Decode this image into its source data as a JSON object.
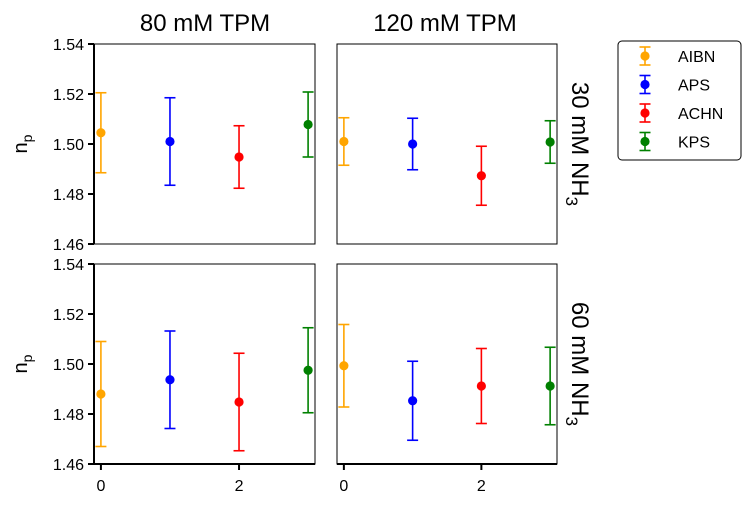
{
  "chart_data": {
    "type": "scatter",
    "grid": false,
    "legend_placement": "right-outside-top",
    "column_titles": [
      "80 mM TPM",
      "120 mM TPM"
    ],
    "row_titles": [
      {
        "main": "30 mM NH",
        "sub": "3"
      },
      {
        "main": "60 mM NH",
        "sub": "3"
      }
    ],
    "ylabel": {
      "main": "n",
      "sub": "p"
    },
    "xlabel": "",
    "xlim": [
      -0.1,
      3.1
    ],
    "ylim": [
      1.46,
      1.54
    ],
    "x_ticks": [
      0,
      2
    ],
    "y_ticks": [
      1.46,
      1.48,
      1.5,
      1.52,
      1.54
    ],
    "y_tick_labels": [
      "1.46",
      "1.48",
      "1.50",
      "1.52",
      "1.54"
    ],
    "x_tick_labels": [
      "0",
      "2"
    ],
    "series": [
      {
        "name": "AIBN",
        "color": "#FFA500"
      },
      {
        "name": "APS",
        "color": "#0000FF"
      },
      {
        "name": "ACHN",
        "color": "#FF0000"
      },
      {
        "name": "KPS",
        "color": "#008000"
      }
    ],
    "panels": [
      {
        "row": 0,
        "col": 0,
        "points": [
          {
            "x": 0,
            "y": 1.5045,
            "err": 0.016
          },
          {
            "x": 1,
            "y": 1.501,
            "err": 0.0175
          },
          {
            "x": 2,
            "y": 1.4948,
            "err": 0.0125
          },
          {
            "x": 3,
            "y": 1.5078,
            "err": 0.013
          }
        ]
      },
      {
        "row": 0,
        "col": 1,
        "points": [
          {
            "x": 0,
            "y": 1.501,
            "err": 0.0095
          },
          {
            "x": 1,
            "y": 1.5,
            "err": 0.0103
          },
          {
            "x": 2,
            "y": 1.4873,
            "err": 0.0118
          },
          {
            "x": 3,
            "y": 1.5008,
            "err": 0.0085
          }
        ]
      },
      {
        "row": 1,
        "col": 0,
        "points": [
          {
            "x": 0,
            "y": 1.488,
            "err": 0.021
          },
          {
            "x": 1,
            "y": 1.4937,
            "err": 0.0195
          },
          {
            "x": 2,
            "y": 1.4848,
            "err": 0.0195
          },
          {
            "x": 3,
            "y": 1.4975,
            "err": 0.017
          }
        ]
      },
      {
        "row": 1,
        "col": 1,
        "points": [
          {
            "x": 0,
            "y": 1.4993,
            "err": 0.0165
          },
          {
            "x": 1,
            "y": 1.4853,
            "err": 0.0158
          },
          {
            "x": 2,
            "y": 1.4912,
            "err": 0.015
          },
          {
            "x": 3,
            "y": 1.4912,
            "err": 0.0155
          }
        ]
      }
    ]
  }
}
